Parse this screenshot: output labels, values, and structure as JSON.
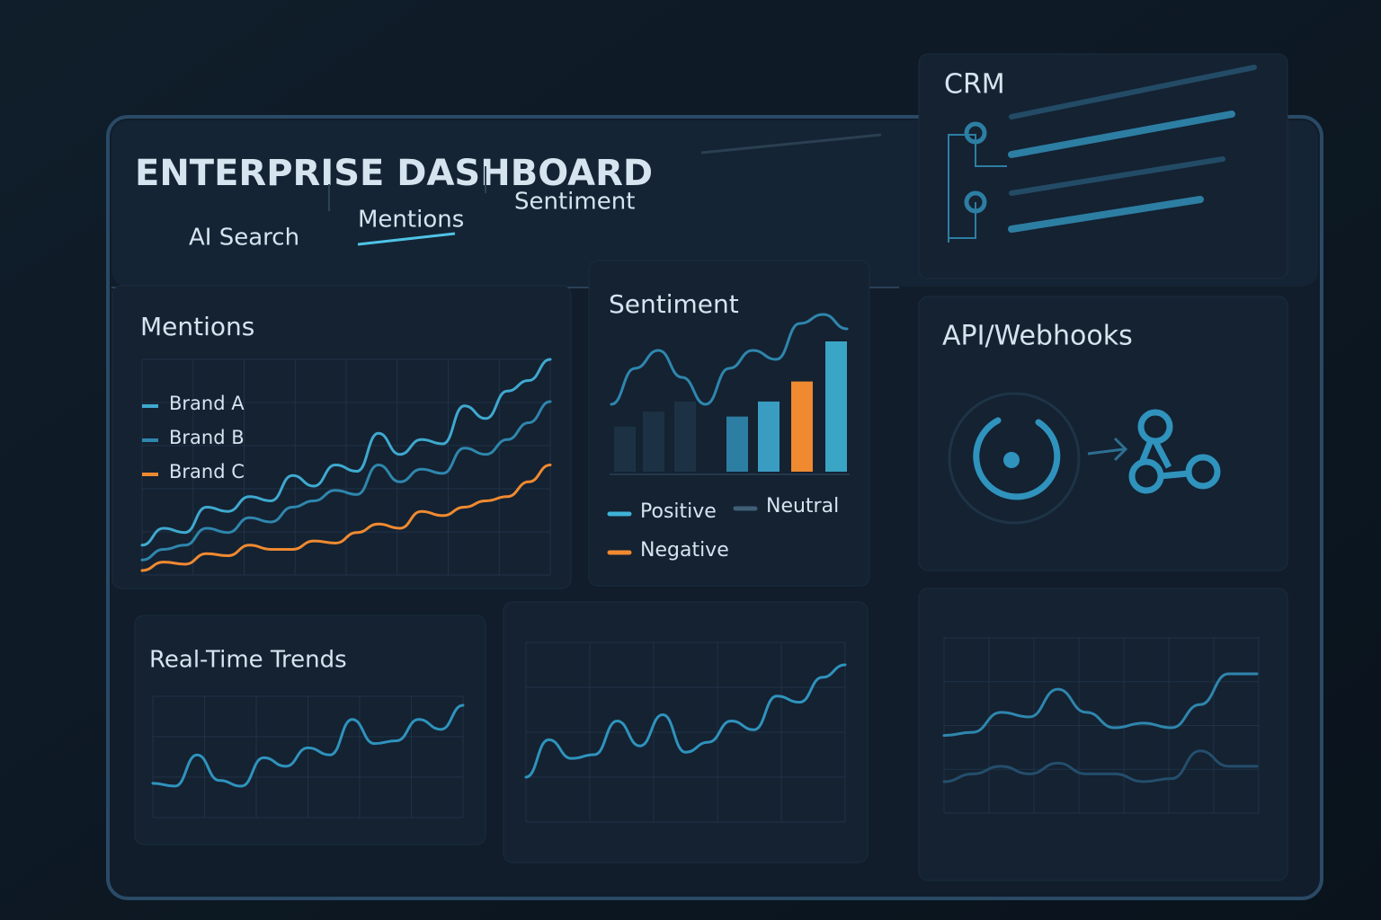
{
  "header": {
    "title": "ENTERPRISE DASHBOARD",
    "tabs": [
      "AI Search",
      "Mentions",
      "Sentiment"
    ],
    "active_tab": 1
  },
  "panels": {
    "mentions": {
      "title": "Mentions",
      "series": [
        {
          "name": "Brand A",
          "color": "#3fa9cf",
          "values": [
            12,
            20,
            18,
            30,
            28,
            35,
            33,
            45,
            40,
            50,
            47,
            65,
            55,
            62,
            60,
            78,
            72,
            85,
            90,
            100
          ]
        },
        {
          "name": "Brand B",
          "color": "#2f86ad",
          "values": [
            5,
            10,
            12,
            20,
            18,
            25,
            23,
            30,
            33,
            38,
            36,
            50,
            42,
            48,
            46,
            58,
            55,
            62,
            70,
            80
          ]
        },
        {
          "name": "Brand C",
          "color": "#f08a30",
          "values": [
            0,
            4,
            3,
            8,
            7,
            12,
            10,
            10,
            14,
            13,
            18,
            22,
            20,
            28,
            26,
            30,
            33,
            35,
            42,
            50
          ]
        }
      ]
    },
    "sentiment": {
      "title": "Sentiment",
      "bars": [
        45,
        60,
        70,
        55,
        70,
        90,
        130
      ],
      "bar_colors": [
        "#1c3244",
        "#1c3244",
        "#1c3244",
        "#2d7ea3",
        "#3a9cc0",
        "#f08a30",
        "#3aa5c4"
      ],
      "line": [
        50,
        70,
        80,
        65,
        50,
        70,
        80,
        75,
        95,
        100,
        92
      ],
      "line_color": "#2f86ad",
      "legend": [
        {
          "name": "Positive",
          "color": "#3fb3d8"
        },
        {
          "name": "Neutral",
          "color": "#3f5f75"
        },
        {
          "name": "Negative",
          "color": "#f08a30"
        }
      ]
    },
    "crm": {
      "title": "CRM"
    },
    "api": {
      "title": "API/Webhooks"
    },
    "trends": {
      "title": "Real-Time Trends",
      "color": "#2f93bd",
      "values": [
        10,
        8,
        30,
        12,
        8,
        28,
        22,
        35,
        30,
        55,
        38,
        40,
        55,
        48,
        65
      ]
    },
    "activity": {
      "color": "#2f93bd",
      "values": [
        10,
        40,
        25,
        28,
        55,
        35,
        60,
        30,
        38,
        55,
        48,
        75,
        70,
        90,
        100
      ]
    },
    "integration": {
      "series": [
        {
          "color": "#2f86ad",
          "values": [
            40,
            42,
            55,
            52,
            70,
            55,
            45,
            48,
            45,
            60,
            80,
            80
          ]
        },
        {
          "color": "#244e6c",
          "values": [
            10,
            15,
            20,
            15,
            22,
            15,
            15,
            10,
            12,
            30,
            20,
            20
          ]
        }
      ]
    }
  }
}
